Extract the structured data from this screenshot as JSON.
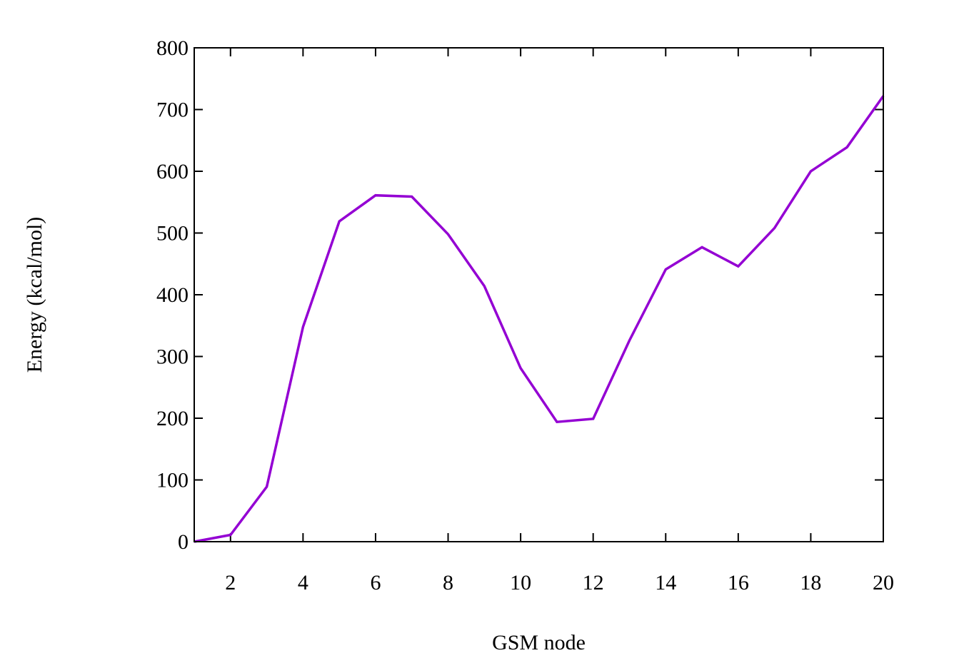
{
  "chart_data": {
    "type": "line",
    "title": "",
    "xlabel": "GSM node",
    "ylabel": "Energy (kcal/mol)",
    "xlim": [
      1,
      20
    ],
    "ylim": [
      0,
      800
    ],
    "xticks": [
      2,
      4,
      6,
      8,
      10,
      12,
      14,
      16,
      18,
      20
    ],
    "yticks": [
      0,
      100,
      200,
      300,
      400,
      500,
      600,
      700,
      800
    ],
    "grid": false,
    "legend": "none",
    "series": [
      {
        "color": "#9400D3",
        "x": [
          1,
          2,
          3,
          4,
          5,
          6,
          7,
          8,
          9,
          10,
          11,
          12,
          13,
          14,
          15,
          16,
          17,
          18,
          19,
          20
        ],
        "y": [
          0,
          11,
          89,
          348,
          519,
          561,
          559,
          498,
          414,
          281,
          194,
          199,
          326,
          441,
          477,
          446,
          508,
          600,
          639,
          722
        ]
      }
    ]
  }
}
